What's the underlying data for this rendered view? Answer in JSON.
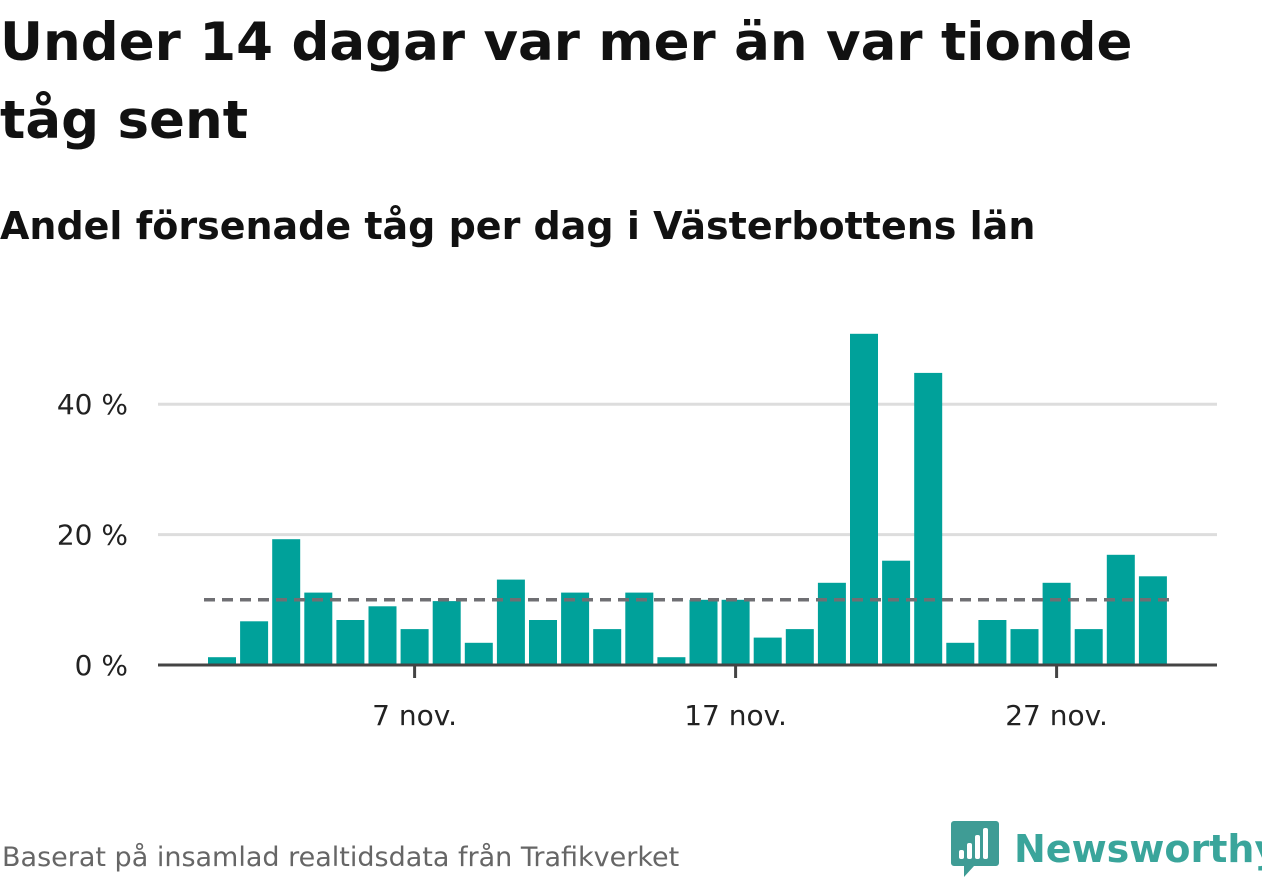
{
  "header": {
    "title": "Under 14 dagar var mer än var tionde tåg sent",
    "subtitle": "Andel försenade tåg per dag i Västerbottens län"
  },
  "footer": {
    "source": "Baserat på insamlad realtidsdata från Trafikverket",
    "brand": "Newsworthy"
  },
  "colors": {
    "bar": "#00a19a",
    "reference_line": "#6f6f73",
    "grid": "#dddddd",
    "axis": "#444444",
    "brand": "#3aa59b",
    "brand_icon": "#3f9c95"
  },
  "icons": {
    "brand_logo": "bar-chart-speech-bubble-icon"
  },
  "chart_data": {
    "type": "bar",
    "title": "Under 14 dagar var mer än var tionde tåg sent",
    "subtitle": "Andel försenade tåg per dag i Västerbottens län",
    "xlabel": "",
    "ylabel": "",
    "x": [
      "2024-11-01",
      "2024-11-02",
      "2024-11-03",
      "2024-11-04",
      "2024-11-05",
      "2024-11-06",
      "2024-11-07",
      "2024-11-08",
      "2024-11-09",
      "2024-11-10",
      "2024-11-11",
      "2024-11-12",
      "2024-11-13",
      "2024-11-14",
      "2024-11-15",
      "2024-11-16",
      "2024-11-17",
      "2024-11-18",
      "2024-11-19",
      "2024-11-20",
      "2024-11-21",
      "2024-11-22",
      "2024-11-23",
      "2024-11-24",
      "2024-11-25",
      "2024-11-26",
      "2024-11-27",
      "2024-11-28",
      "2024-11-29",
      "2024-11-30"
    ],
    "values": [
      1.2,
      6.7,
      19.3,
      11.1,
      6.9,
      9.0,
      5.5,
      9.8,
      3.4,
      13.1,
      6.9,
      11.1,
      5.5,
      11.1,
      1.2,
      10.0,
      10.0,
      4.2,
      5.5,
      12.6,
      50.8,
      16.0,
      44.8,
      3.4,
      6.9,
      5.5,
      12.6,
      5.5,
      16.9,
      13.6
    ],
    "reference_line": 10,
    "reference_line_style": "dashed",
    "xticks": [
      {
        "date": "2024-11-07",
        "label": "7 nov."
      },
      {
        "date": "2024-11-17",
        "label": "17 nov."
      },
      {
        "date": "2024-11-27",
        "label": "27 nov."
      }
    ],
    "yticks": [
      {
        "value": 0,
        "label": "0 %"
      },
      {
        "value": 20,
        "label": "20 %"
      },
      {
        "value": 40,
        "label": "40 %"
      }
    ],
    "ylim": [
      0,
      52
    ],
    "grid": true,
    "legend": "none"
  }
}
